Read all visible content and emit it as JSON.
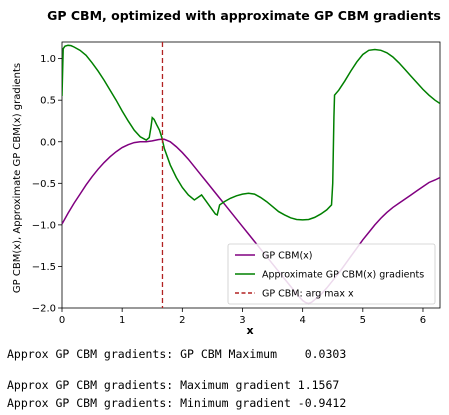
{
  "chart_data": {
    "type": "line",
    "title": "GP CBM, optimized with approximate GP CBM gradients",
    "xlabel": "x",
    "ylabel": "GP CBM(x), Approximate GP CBM(x) gradients",
    "xlim": [
      0,
      6.283
    ],
    "ylim": [
      -2.0,
      1.2
    ],
    "x_ticks": [
      "0",
      "1",
      "2",
      "3",
      "4",
      "5",
      "6"
    ],
    "y_ticks": [
      "1.0",
      "0.5",
      "0.0",
      "−0.5",
      "−1.0",
      "−1.5",
      "−2.0"
    ],
    "grid": false,
    "legend_position": "lower-right",
    "legend": [
      {
        "label": "GP CBM(x)",
        "color": "#800080",
        "style": "solid"
      },
      {
        "label": "Approximate GP CBM(x) gradients",
        "color": "#008000",
        "style": "solid"
      },
      {
        "label": "GP CBM: arg max x",
        "color": "#b22222",
        "style": "dashed"
      }
    ],
    "series": [
      {
        "name": "GP CBM(x)",
        "color": "#800080",
        "points": [
          [
            0,
            -0.99
          ],
          [
            0.1,
            -0.86
          ],
          [
            0.2,
            -0.74
          ],
          [
            0.3,
            -0.63
          ],
          [
            0.4,
            -0.52
          ],
          [
            0.5,
            -0.42
          ],
          [
            0.6,
            -0.33
          ],
          [
            0.7,
            -0.25
          ],
          [
            0.8,
            -0.18
          ],
          [
            0.9,
            -0.12
          ],
          [
            1.0,
            -0.07
          ],
          [
            1.1,
            -0.035
          ],
          [
            1.2,
            -0.01
          ],
          [
            1.3,
            0.0
          ],
          [
            1.4,
            0.0
          ],
          [
            1.5,
            0.01
          ],
          [
            1.6,
            0.025
          ],
          [
            1.65,
            0.03
          ],
          [
            1.7,
            0.03
          ],
          [
            1.8,
            0.0
          ],
          [
            1.9,
            -0.06
          ],
          [
            2.0,
            -0.13
          ],
          [
            2.1,
            -0.21
          ],
          [
            2.2,
            -0.3
          ],
          [
            2.3,
            -0.39
          ],
          [
            2.4,
            -0.48
          ],
          [
            2.5,
            -0.57
          ],
          [
            2.6,
            -0.66
          ],
          [
            2.7,
            -0.75
          ],
          [
            2.8,
            -0.84
          ],
          [
            2.9,
            -0.93
          ],
          [
            3.0,
            -1.02
          ],
          [
            3.1,
            -1.11
          ],
          [
            3.2,
            -1.2
          ],
          [
            3.3,
            -1.29
          ],
          [
            3.4,
            -1.38
          ],
          [
            3.5,
            -1.47
          ],
          [
            3.6,
            -1.56
          ],
          [
            3.7,
            -1.65
          ],
          [
            3.8,
            -1.74
          ],
          [
            3.9,
            -1.83
          ],
          [
            3.95,
            -1.87
          ],
          [
            4.0,
            -1.91
          ],
          [
            4.05,
            -1.935
          ],
          [
            4.1,
            -1.945
          ],
          [
            4.15,
            -1.93
          ],
          [
            4.2,
            -1.9
          ],
          [
            4.3,
            -1.84
          ],
          [
            4.4,
            -1.76
          ],
          [
            4.5,
            -1.67
          ],
          [
            4.6,
            -1.58
          ],
          [
            4.7,
            -1.48
          ],
          [
            4.8,
            -1.38
          ],
          [
            4.9,
            -1.28
          ],
          [
            5.0,
            -1.18
          ],
          [
            5.1,
            -1.09
          ],
          [
            5.2,
            -1.0
          ],
          [
            5.3,
            -0.92
          ],
          [
            5.4,
            -0.85
          ],
          [
            5.5,
            -0.79
          ],
          [
            5.6,
            -0.74
          ],
          [
            5.7,
            -0.69
          ],
          [
            5.8,
            -0.64
          ],
          [
            5.9,
            -0.59
          ],
          [
            6.0,
            -0.54
          ],
          [
            6.1,
            -0.49
          ],
          [
            6.2,
            -0.46
          ],
          [
            6.283,
            -0.43
          ]
        ]
      },
      {
        "name": "Approximate GP CBM(x) gradients",
        "color": "#008000",
        "points": [
          [
            0,
            0.55
          ],
          [
            0.02,
            1.12
          ],
          [
            0.05,
            1.15
          ],
          [
            0.1,
            1.16
          ],
          [
            0.15,
            1.156
          ],
          [
            0.2,
            1.14
          ],
          [
            0.3,
            1.1
          ],
          [
            0.4,
            1.04
          ],
          [
            0.5,
            0.95
          ],
          [
            0.6,
            0.85
          ],
          [
            0.7,
            0.74
          ],
          [
            0.8,
            0.62
          ],
          [
            0.9,
            0.5
          ],
          [
            1.0,
            0.37
          ],
          [
            1.1,
            0.25
          ],
          [
            1.2,
            0.14
          ],
          [
            1.3,
            0.06
          ],
          [
            1.4,
            0.02
          ],
          [
            1.45,
            0.05
          ],
          [
            1.48,
            0.18
          ],
          [
            1.5,
            0.29
          ],
          [
            1.53,
            0.27
          ],
          [
            1.57,
            0.21
          ],
          [
            1.62,
            0.14
          ],
          [
            1.66,
            0.05
          ],
          [
            1.7,
            -0.08
          ],
          [
            1.8,
            -0.28
          ],
          [
            1.9,
            -0.43
          ],
          [
            2.0,
            -0.55
          ],
          [
            2.1,
            -0.64
          ],
          [
            2.2,
            -0.7
          ],
          [
            2.28,
            -0.66
          ],
          [
            2.32,
            -0.64
          ],
          [
            2.4,
            -0.72
          ],
          [
            2.5,
            -0.82
          ],
          [
            2.55,
            -0.87
          ],
          [
            2.58,
            -0.88
          ],
          [
            2.62,
            -0.76
          ],
          [
            2.7,
            -0.72
          ],
          [
            2.8,
            -0.68
          ],
          [
            2.9,
            -0.65
          ],
          [
            3.0,
            -0.63
          ],
          [
            3.1,
            -0.62
          ],
          [
            3.2,
            -0.63
          ],
          [
            3.3,
            -0.67
          ],
          [
            3.4,
            -0.72
          ],
          [
            3.5,
            -0.78
          ],
          [
            3.6,
            -0.84
          ],
          [
            3.7,
            -0.88
          ],
          [
            3.8,
            -0.915
          ],
          [
            3.9,
            -0.935
          ],
          [
            4.0,
            -0.94
          ],
          [
            4.1,
            -0.935
          ],
          [
            4.2,
            -0.91
          ],
          [
            4.3,
            -0.87
          ],
          [
            4.4,
            -0.82
          ],
          [
            4.48,
            -0.76
          ],
          [
            4.5,
            -0.5
          ],
          [
            4.52,
            0.3
          ],
          [
            4.53,
            0.56
          ],
          [
            4.6,
            0.62
          ],
          [
            4.7,
            0.73
          ],
          [
            4.8,
            0.85
          ],
          [
            4.9,
            0.96
          ],
          [
            5.0,
            1.05
          ],
          [
            5.1,
            1.1
          ],
          [
            5.2,
            1.11
          ],
          [
            5.3,
            1.1
          ],
          [
            5.4,
            1.07
          ],
          [
            5.5,
            1.02
          ],
          [
            5.6,
            0.95
          ],
          [
            5.7,
            0.87
          ],
          [
            5.8,
            0.79
          ],
          [
            5.9,
            0.71
          ],
          [
            6.0,
            0.63
          ],
          [
            6.1,
            0.56
          ],
          [
            6.2,
            0.5
          ],
          [
            6.283,
            0.46
          ]
        ]
      }
    ],
    "vline": {
      "name": "GP CBM: arg max x",
      "x": 1.67,
      "color": "#b22222"
    }
  },
  "output_lines": [
    "Approx GP CBM gradients: GP CBM Maximum    0.0303",
    "",
    "Approx GP CBM gradients: Maximum gradient 1.1567",
    "Approx GP CBM gradients: Minimum gradient -0.9412"
  ]
}
